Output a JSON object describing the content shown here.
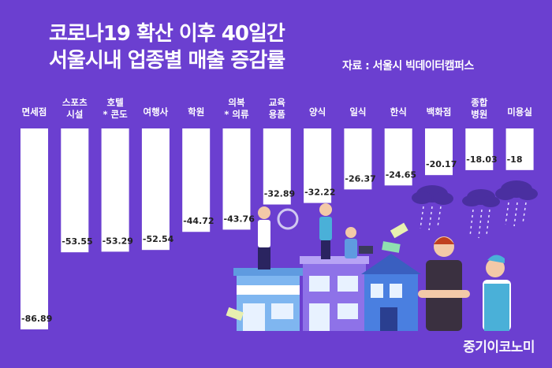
{
  "title": {
    "line1": "코로나19 확산 이후 40일간",
    "line2": "서울시내 업종별 매출 증감률"
  },
  "source": "자료 : 서울시 빅데이터캠퍼스",
  "watermark": "중기이코노미",
  "colors": {
    "background": "#6b3fd0",
    "bar": "#ffffff",
    "text": "#ffffff",
    "value_text": "#222222"
  },
  "chart_data": {
    "type": "bar",
    "orientation": "vertical-negative",
    "title": "코로나19 확산 이후 40일간 서울시내 업종별 매출 증감률",
    "categories": [
      [
        "면세점"
      ],
      [
        "스포츠",
        "시설"
      ],
      [
        "호텔",
        "* 콘도"
      ],
      [
        "여행사"
      ],
      [
        "학원"
      ],
      [
        "의복",
        "* 의류"
      ],
      [
        "교육",
        "용품"
      ],
      [
        "양식"
      ],
      [
        "일식"
      ],
      [
        "한식"
      ],
      [
        "백화점"
      ],
      [
        "종합",
        "병원"
      ],
      [
        "미용실"
      ]
    ],
    "values": [
      -86.89,
      -53.55,
      -53.29,
      -52.54,
      -44.72,
      -43.76,
      -32.89,
      -32.22,
      -26.37,
      -24.65,
      -20.17,
      -18.03,
      -18
    ],
    "value_labels": [
      "-86.89",
      "-53.55",
      "-53.29",
      "-52.54",
      "-44.72",
      "-43.76",
      "-32.89",
      "-32.22",
      "-26.37",
      "-24.65",
      "-20.17",
      "-18.03",
      "-18"
    ],
    "ylim": [
      -90,
      0
    ],
    "grid": false,
    "legend": "none",
    "xlabel": "",
    "ylabel": ""
  }
}
